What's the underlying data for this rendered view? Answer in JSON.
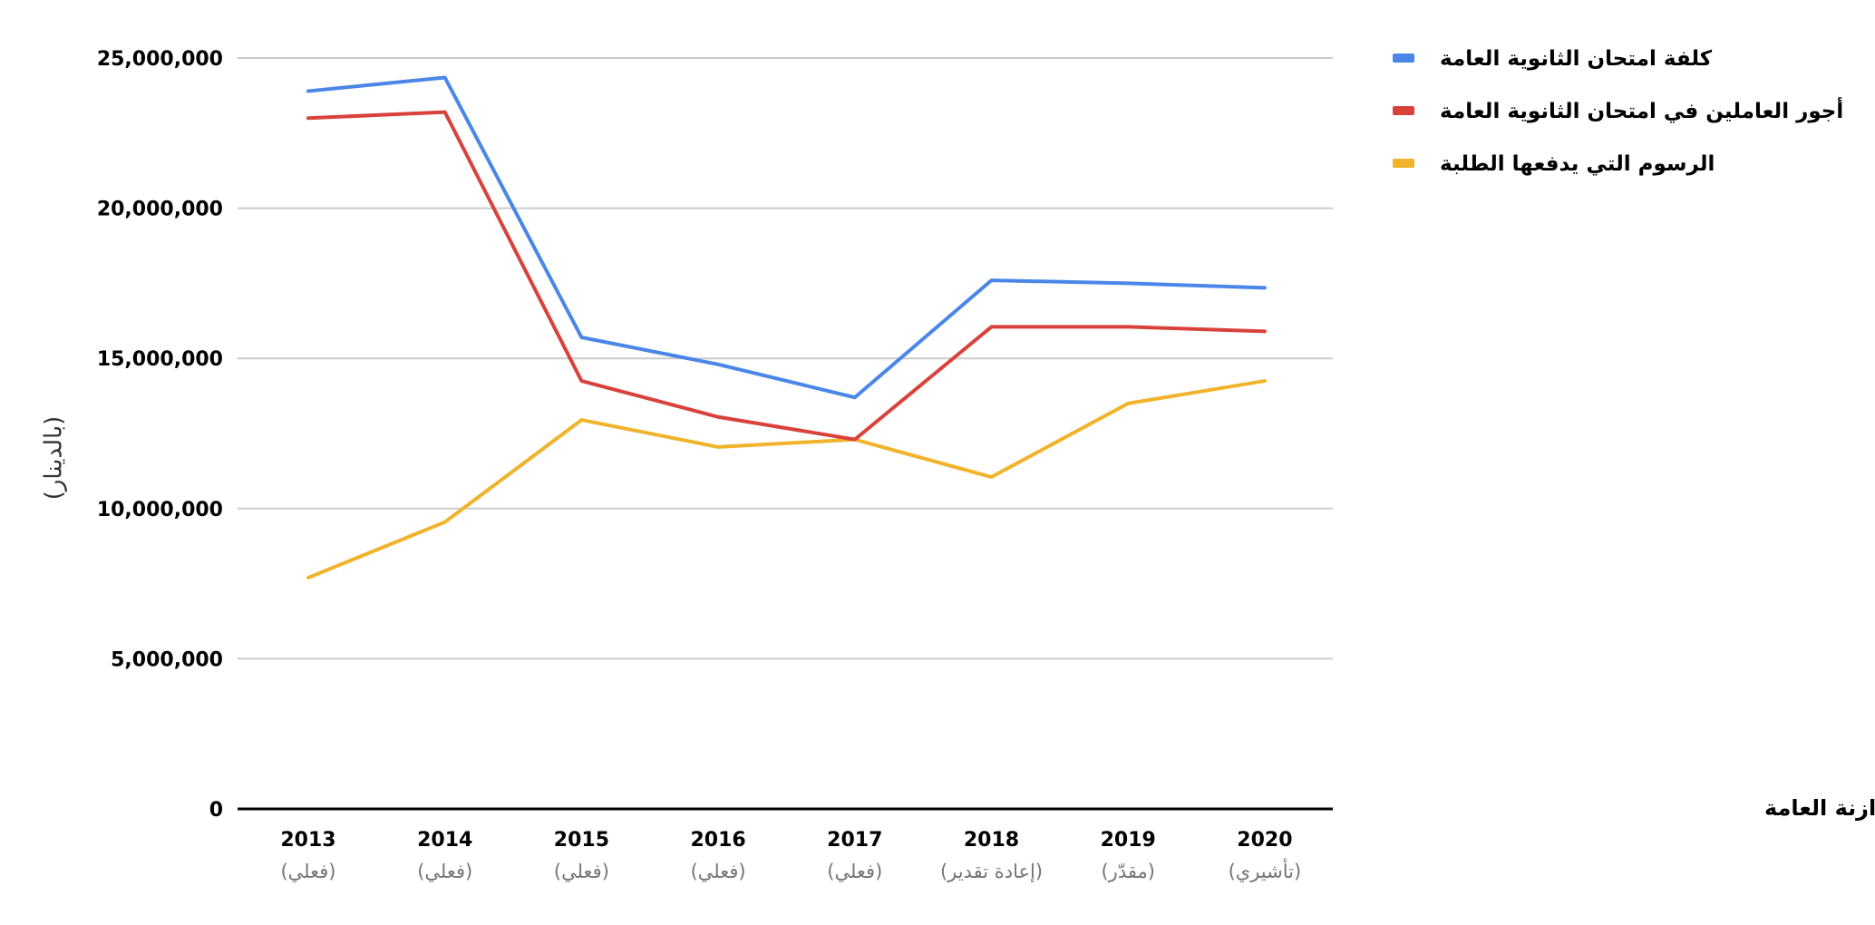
{
  "chart_data": {
    "type": "line",
    "categories": [
      "2013",
      "2014",
      "2015",
      "2016",
      "2017",
      "2018",
      "2019",
      "2020"
    ],
    "category_notes": [
      "(فعلي)",
      "(فعلي)",
      "(فعلي)",
      "(فعلي)",
      "(فعلي)",
      "(إعادة تقدير)",
      "(مقدّر)",
      "(تأشيري)"
    ],
    "ylabel": "(بالدينار)",
    "xlabel": "",
    "ylim": [
      0,
      25000000
    ],
    "yticks": [
      0,
      5000000,
      10000000,
      15000000,
      20000000,
      25000000
    ],
    "ytick_labels": [
      "0",
      "5,000,000",
      "10,000,000",
      "15,000,000",
      "20,000,000",
      "25,000,000"
    ],
    "grid": true,
    "legend_position": "right",
    "series": [
      {
        "name": "كلفة امتحان الثانوية العامة",
        "color": "#4A86E8",
        "values": [
          23900000,
          24350000,
          15700000,
          14800000,
          13700000,
          17600000,
          17500000,
          17350000
        ]
      },
      {
        "name": "أجور العاملين في امتحان الثانوية العامة",
        "color": "#D9423B",
        "values": [
          23000000,
          23200000,
          14250000,
          13050000,
          12300000,
          16050000,
          16050000,
          15900000
        ]
      },
      {
        "name": "الرسوم التي يدفعها الطلبة",
        "color": "#F0B32A",
        "values": [
          7700000,
          9550000,
          12950000,
          12050000,
          12300000,
          11050000,
          13500000,
          14250000
        ]
      }
    ],
    "source_note": "*المصدر: دائرة الموازنة العامة"
  }
}
